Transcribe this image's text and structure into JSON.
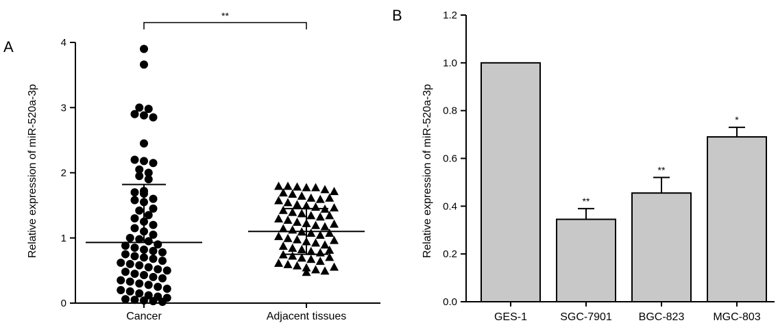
{
  "chart_data": [
    {
      "panel_label": "A",
      "type": "scatter",
      "title": "",
      "xlabel": "",
      "ylabel": "Relative expression of miR-520a-3p",
      "ylim": [
        0,
        4
      ],
      "yticks": [
        "0",
        "1",
        "2",
        "3",
        "4"
      ],
      "categories": [
        "Cancer",
        "Adjacent tissues"
      ],
      "grid": false,
      "series": [
        {
          "category": "Cancer",
          "marker": "circle",
          "mean": 0.93,
          "sd_upper": 1.82,
          "values": [
            3.9,
            3.66,
            3.0,
            2.98,
            2.9,
            2.88,
            2.85,
            2.45,
            2.2,
            2.18,
            2.15,
            2.05,
            2.0,
            1.95,
            1.9,
            1.72,
            1.7,
            1.68,
            1.6,
            1.58,
            1.55,
            1.45,
            1.42,
            1.35,
            1.3,
            1.25,
            1.2,
            1.15,
            1.1,
            1.05,
            1.0,
            0.98,
            0.95,
            0.9,
            0.88,
            0.85,
            0.82,
            0.8,
            0.78,
            0.75,
            0.72,
            0.7,
            0.68,
            0.65,
            0.62,
            0.6,
            0.58,
            0.55,
            0.52,
            0.5,
            0.48,
            0.45,
            0.43,
            0.4,
            0.38,
            0.35,
            0.33,
            0.3,
            0.28,
            0.25,
            0.22,
            0.2,
            0.18,
            0.15,
            0.12,
            0.1,
            0.08,
            0.06,
            0.05,
            0.04,
            0.03,
            0.02
          ]
        },
        {
          "category": "Adjacent tissues",
          "marker": "triangle",
          "mean": 1.1,
          "sd_upper": 1.45,
          "sd_lower": 0.75,
          "values": [
            1.8,
            1.8,
            1.79,
            1.78,
            1.78,
            1.75,
            1.72,
            1.7,
            1.68,
            1.65,
            1.62,
            1.6,
            1.58,
            1.55,
            1.52,
            1.5,
            1.48,
            1.45,
            1.43,
            1.4,
            1.38,
            1.35,
            1.33,
            1.3,
            1.28,
            1.25,
            1.23,
            1.2,
            1.18,
            1.15,
            1.13,
            1.1,
            1.08,
            1.05,
            1.03,
            1.0,
            0.98,
            0.95,
            0.93,
            0.9,
            0.88,
            0.85,
            0.83,
            0.8,
            0.78,
            0.75,
            0.73,
            0.7,
            0.68,
            0.65,
            0.62,
            0.6,
            0.58,
            0.55,
            0.52,
            0.5,
            0.48,
            1.62,
            1.35,
            1.08,
            0.82,
            0.56,
            1.47,
            1.22,
            0.97,
            0.71
          ]
        }
      ],
      "annotations": [
        {
          "text": "**",
          "between": [
            "Cancer",
            "Adjacent tissues"
          ]
        }
      ]
    },
    {
      "panel_label": "B",
      "type": "bar",
      "title": "",
      "xlabel": "",
      "ylabel": "Relative expression of miR-520a-3p",
      "ylim": [
        0,
        1.2
      ],
      "yticks": [
        "0.0",
        "0.2",
        "0.4",
        "0.6",
        "0.8",
        "1.0",
        "1.2"
      ],
      "grid": false,
      "categories": [
        "GES-1",
        "SGC-7901",
        "BGC-823",
        "MGC-803"
      ],
      "values": [
        1.0,
        0.345,
        0.455,
        0.69
      ],
      "errors": [
        0,
        0.045,
        0.065,
        0.04
      ],
      "significance": [
        "",
        "**",
        "**",
        "*"
      ],
      "bar_color": "#c8c8c8"
    }
  ]
}
